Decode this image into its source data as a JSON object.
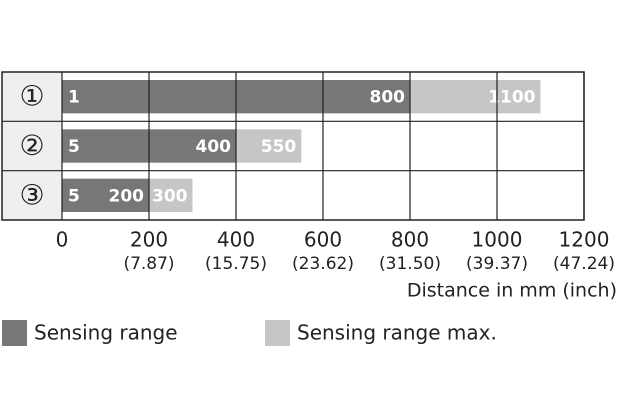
{
  "chart_data": {
    "type": "range-bar",
    "categories": [
      "①",
      "②",
      "③"
    ],
    "series": [
      {
        "name": "Sensing range",
        "color": "#777777",
        "start": [
          1,
          5,
          5
        ],
        "values": [
          800,
          400,
          200
        ]
      },
      {
        "name": "Sensing range max.",
        "color": "#c6c6c6",
        "values": [
          1100,
          550,
          300
        ]
      }
    ],
    "xlim": [
      0,
      1200
    ],
    "xticks": [
      0,
      200,
      400,
      600,
      800,
      1000,
      1200
    ],
    "secondary_xticks": [
      {
        "value": 200,
        "label": "(7.87)"
      },
      {
        "value": 400,
        "label": "(15.75)"
      },
      {
        "value": 600,
        "label": "(23.62)"
      },
      {
        "value": 800,
        "label": "(31.50)"
      },
      {
        "value": 1000,
        "label": "(39.37)"
      },
      {
        "value": 1200,
        "label": "(47.24)"
      }
    ],
    "x_label": "Distance in mm (inch)",
    "grid": true
  }
}
